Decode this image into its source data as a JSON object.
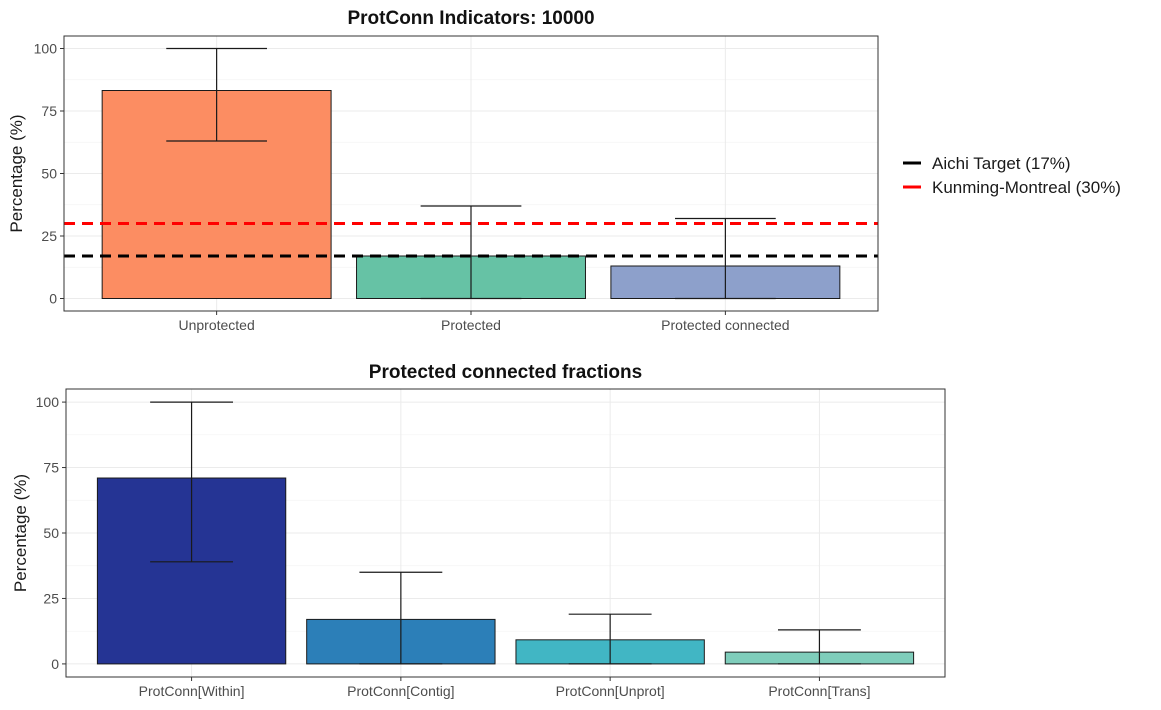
{
  "chart_data": [
    {
      "type": "bar",
      "title": "ProtConn Indicators: 10000",
      "ylabel": "Percentage (%)",
      "xlabel": "",
      "ylim": [
        0,
        100
      ],
      "yticks": [
        0,
        25,
        50,
        75,
        100
      ],
      "grid": true,
      "categories": [
        "Unprotected",
        "Protected",
        "Protected connected"
      ],
      "values": [
        83.2,
        17.0,
        13.0
      ],
      "error_low": [
        63.0,
        0.0,
        0.0
      ],
      "error_high": [
        100.0,
        37.0,
        32.0
      ],
      "colors": [
        "#fc8d62",
        "#66c2a5",
        "#8da0cb"
      ],
      "reference_lines": [
        {
          "label": "Aichi Target (17%)",
          "value": 17,
          "color": "#000000"
        },
        {
          "label": "Kunming-Montreal (30%)",
          "value": 30,
          "color": "#ff0000"
        }
      ],
      "legend_position": "right"
    },
    {
      "type": "bar",
      "title": "Protected connected fractions",
      "ylabel": "Percentage (%)",
      "xlabel": "",
      "ylim": [
        0,
        100
      ],
      "yticks": [
        0,
        25,
        50,
        75,
        100
      ],
      "grid": true,
      "categories": [
        "ProtConn[Within]",
        "ProtConn[Contig]",
        "ProtConn[Unprot]",
        "ProtConn[Trans]"
      ],
      "values": [
        71.0,
        17.0,
        9.2,
        4.5
      ],
      "error_low": [
        39.0,
        0.0,
        0.0,
        0.0
      ],
      "error_high": [
        100.0,
        35.0,
        19.0,
        13.0
      ],
      "colors": [
        "#253494",
        "#2c7fb8",
        "#41b6c4",
        "#7fcdbb"
      ]
    }
  ]
}
